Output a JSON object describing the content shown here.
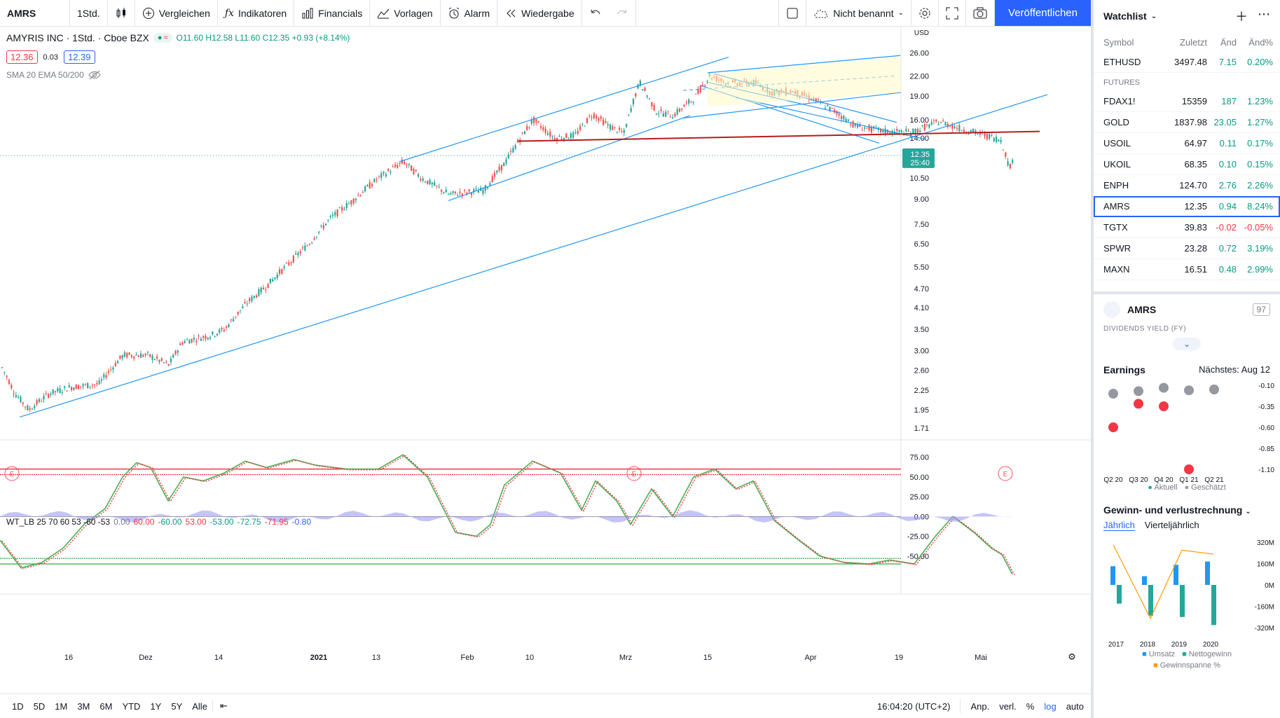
{
  "toolbar": {
    "symbol": "AMRS",
    "interval": "1Std.",
    "compare": "Vergleichen",
    "indicators": "Indikatoren",
    "financials": "Financials",
    "templates": "Vorlagen",
    "alert": "Alarm",
    "replay": "Wiedergabe",
    "layout_name": "Nicht benannt",
    "publish": "Veröffentlichen"
  },
  "legend": {
    "name": "AMYRIS INC · 1Std. · Cboe BZX",
    "open": "O11.60",
    "high": "H12.58",
    "low": "L11.60",
    "close": "C12.35",
    "change": "+0.93 (+8.14%)",
    "bid": "12.36",
    "spread": "0.03",
    "ask": "12.39",
    "ma": "SMA 20 EMA 50/200"
  },
  "wt": {
    "name": "WT_LB 25 70 60 53 -60 -53",
    "v0": "0.00",
    "v1": "60.00",
    "v2": "-60.00",
    "v3": "53.00",
    "v4": "-53.00",
    "v5": "-72.75",
    "v6": "-71.95",
    "v7": "-0.80"
  },
  "axis": {
    "currency": "USD",
    "price_ticks": [
      "26.00",
      "22.00",
      "19.00",
      "16.00",
      "14.00",
      "12.35",
      "10.50",
      "9.00",
      "7.50",
      "6.50",
      "5.50",
      "4.70",
      "4.10",
      "3.50",
      "3.00",
      "2.60",
      "2.25",
      "1.95",
      "1.71"
    ],
    "price_tick_values": [
      26,
      22,
      19,
      16,
      14,
      12.35,
      10.5,
      9,
      7.5,
      6.5,
      5.5,
      4.7,
      4.1,
      3.5,
      3,
      2.6,
      2.25,
      1.95,
      1.71
    ],
    "current_price": "12.35",
    "countdown": "25:40",
    "wt_ticks": [
      "75.00",
      "50.00",
      "25.00",
      "0.00",
      "-25.00",
      "-50.00"
    ],
    "wt_tick_values": [
      75,
      50,
      25,
      0,
      -25,
      -50
    ],
    "time_ticks": [
      "16",
      "Dez",
      "14",
      "2021",
      "13",
      "Feb",
      "10",
      "Mrz",
      "15",
      "Apr",
      "19",
      "Mai"
    ],
    "earnings_marker": "E"
  },
  "bottombar": {
    "ranges": [
      "1D",
      "5D",
      "1M",
      "3M",
      "6M",
      "YTD",
      "1Y",
      "5Y",
      "Alle"
    ],
    "clock": "16:04:20 (UTC+2)",
    "adj": "Anp.",
    "ext": "verl.",
    "pct": "%",
    "log": "log",
    "auto": "auto"
  },
  "watchlist": {
    "title": "Watchlist",
    "columns": [
      "Symbol",
      "Zuletzt",
      "Änd",
      "Änd%"
    ],
    "top_rows": [
      {
        "symbol": "ETHUSD",
        "last": "3497.48",
        "chg": "7.15",
        "pct": "0.20%",
        "dir": "up"
      }
    ],
    "section": "FUTURES",
    "rows": [
      {
        "symbol": "FDAX1!",
        "last": "15359",
        "chg": "187",
        "pct": "1.23%",
        "dir": "up"
      },
      {
        "symbol": "GOLD",
        "last": "1837.98",
        "chg": "23.05",
        "pct": "1.27%",
        "dir": "up"
      },
      {
        "symbol": "USOIL",
        "last": "64.97",
        "chg": "0.11",
        "pct": "0.17%",
        "dir": "up"
      },
      {
        "symbol": "UKOIL",
        "last": "68.35",
        "chg": "0.10",
        "pct": "0.15%",
        "dir": "up"
      },
      {
        "symbol": "ENPH",
        "last": "124.70",
        "chg": "2.76",
        "pct": "2.26%",
        "dir": "up"
      },
      {
        "symbol": "AMRS",
        "last": "12.35",
        "chg": "0.94",
        "pct": "8.24%",
        "dir": "up"
      },
      {
        "symbol": "TGTX",
        "last": "39.83",
        "chg": "-0.02",
        "pct": "-0.05%",
        "dir": "down"
      },
      {
        "symbol": "SPWR",
        "last": "23.28",
        "chg": "0.72",
        "pct": "3.19%",
        "dir": "up"
      },
      {
        "symbol": "MAXN",
        "last": "16.51",
        "chg": "0.48",
        "pct": "2.99%",
        "dir": "up"
      }
    ]
  },
  "detail": {
    "symbol": "AMRS",
    "badge": "97",
    "dividend_label": "DIVIDENDS YIELD (FY)",
    "earnings_title": "Earnings",
    "earnings_next": "Nächstes: Aug 12",
    "earnings_axis": [
      "-0.10",
      "-0.35",
      "-0.60",
      "-0.85",
      "-1.10"
    ],
    "earnings_axis_values": [
      -0.1,
      -0.35,
      -0.6,
      -0.85,
      -1.1
    ],
    "earnings_quarters": [
      "Q2 20",
      "Q3 20",
      "Q4 20",
      "Q1 21",
      "Q2 21"
    ],
    "earnings_estimate": [
      -0.2,
      -0.17,
      -0.13,
      -0.16,
      -0.15
    ],
    "earnings_actual": [
      -0.6,
      -0.32,
      -0.35,
      -1.1,
      null
    ],
    "earnings_legend_actual": "Aktuell",
    "earnings_legend_est": "Geschätzt",
    "fin_title": "Gewinn- und verlustrechnung",
    "fin_tab_annual": "Jährlich",
    "fin_tab_quarterly": "Vierteljährlich",
    "fin_axis": [
      "320M",
      "160M",
      "0M",
      "-160M",
      "-320M"
    ],
    "fin_axis_values": [
      320,
      160,
      0,
      -160,
      -320
    ],
    "fin_years": [
      "2017",
      "2018",
      "2019",
      "2020"
    ],
    "fin_revenue": [
      140,
      65,
      150,
      175
    ],
    "fin_netincome": [
      -140,
      -230,
      -240,
      -300
    ],
    "fin_legend_revenue": "Umsatz",
    "fin_legend_net": "Nettogewinn",
    "fin_legend_margin": "Gewinnspanne %"
  },
  "colors": {
    "up": "#26a69a",
    "down": "#ef5350",
    "trendline": "#2196f3",
    "support": "#b71c1c",
    "wt_line_green": "#4caf50",
    "wt_line_red": "#f23645",
    "wt_hist": "#9c9cf0",
    "accent": "#2962ff"
  }
}
